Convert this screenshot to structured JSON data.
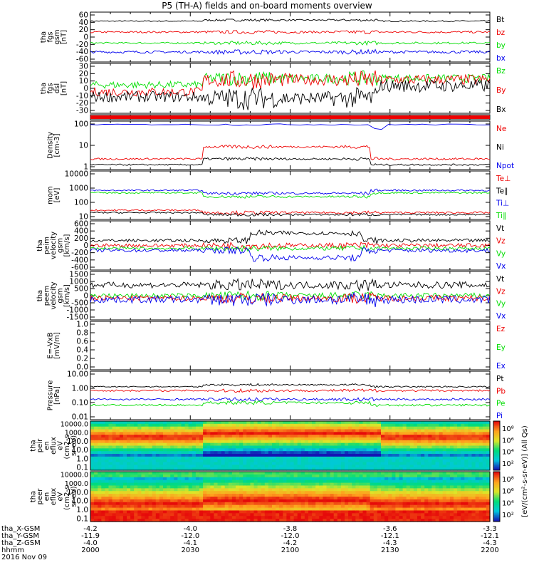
{
  "title": "P5 (TH-A) fields and on-board moments overview",
  "colors": {
    "black": "#000000",
    "red": "#ee0000",
    "green": "#00dd00",
    "blue": "#0000ee"
  },
  "chart_data": {
    "type": "line",
    "panels": [
      {
        "id": "fgs-gsm",
        "ylabel": [
          "tha",
          "fgs",
          "gsm",
          "[nT]"
        ],
        "ticks": [
          "60",
          "40",
          "20",
          "0",
          "-20",
          "-40",
          "-60"
        ],
        "ylim": [
          -60,
          65
        ],
        "series": [
          {
            "name": "Bt",
            "color": "#000000",
            "base": 50,
            "amp": 5
          },
          {
            "name": "bz",
            "color": "#ee0000",
            "base": 15,
            "amp": 5
          },
          {
            "name": "by",
            "color": "#00dd00",
            "base": -17,
            "amp": 6
          },
          {
            "name": "bx",
            "color": "#0000ee",
            "base": -30,
            "amp": 7
          }
        ]
      },
      {
        "id": "fgs-dsl",
        "ylabel": [
          "tha",
          "fgs",
          "dsl",
          "[nT]"
        ],
        "ticks": [
          "30",
          "20",
          "10",
          "0",
          "-10",
          "-20",
          "-30"
        ],
        "ylim": [
          -35,
          30
        ],
        "series": [
          {
            "name": "Bz",
            "color": "#00dd00",
            "base": 5,
            "amp": 8
          },
          {
            "name": "By",
            "color": "#ee0000",
            "base": 2,
            "amp": 10
          },
          {
            "name": "Bx",
            "color": "#000000",
            "base": -10,
            "amp": 12
          }
        ]
      },
      {
        "id": "mode-bar",
        "ylabel": [],
        "ticks": [],
        "series": []
      },
      {
        "id": "density",
        "ylabel": [
          "Density",
          "[cm-3]"
        ],
        "ticks": [
          "100",
          "10",
          "1"
        ],
        "series": [
          {
            "name": "Ne",
            "color": "#ee0000"
          },
          {
            "name": "Ni",
            "color": "#000000"
          },
          {
            "name": "Npot",
            "color": "#0000ee"
          }
        ]
      },
      {
        "id": "temp",
        "ylabel": [
          "mom",
          "[eV]"
        ],
        "ticks": [
          "10000",
          "1000",
          "100",
          "10"
        ],
        "series": [
          {
            "name": "Te⊥",
            "color": "#ee0000"
          },
          {
            "name": "Te∥",
            "color": "#000000"
          },
          {
            "name": "Ti⊥",
            "color": "#0000ee"
          },
          {
            "name": "Ti∥",
            "color": "#00dd00"
          }
        ]
      },
      {
        "id": "peim-vel",
        "ylabel": [
          "tha",
          "peim",
          "velocity",
          "gsm",
          "[km/s]"
        ],
        "ticks": [
          "600",
          "400",
          "200",
          "0",
          "-200",
          "-400",
          "-600"
        ],
        "series": [
          {
            "name": "Vt",
            "color": "#000000"
          },
          {
            "name": "Vz",
            "color": "#ee0000"
          },
          {
            "name": "Vy",
            "color": "#00dd00"
          },
          {
            "name": "Vx",
            "color": "#0000ee"
          }
        ]
      },
      {
        "id": "peem-vel",
        "ylabel": [
          "tha",
          "peem",
          "velocity",
          "gsm",
          "[km/s]"
        ],
        "ticks": [
          "1500",
          "1000",
          "500",
          "0",
          "-500",
          "-1000",
          "-1500"
        ],
        "series": [
          {
            "name": "Vt",
            "color": "#000000"
          },
          {
            "name": "Vz",
            "color": "#ee0000"
          },
          {
            "name": "Vy",
            "color": "#00dd00"
          },
          {
            "name": "Vx",
            "color": "#0000ee"
          }
        ]
      },
      {
        "id": "efield",
        "ylabel": [
          "E=-VxB",
          "[mV/m]"
        ],
        "ticks": [
          "1.0",
          "0.8",
          "0.6",
          "0.4",
          "0.2",
          "0.0"
        ],
        "series": [
          {
            "name": "Ez",
            "color": "#ee0000"
          },
          {
            "name": "Ey",
            "color": "#00dd00"
          },
          {
            "name": "Ex",
            "color": "#0000ee"
          }
        ]
      },
      {
        "id": "pressure",
        "ylabel": [
          "Pressure",
          "[nPa]"
        ],
        "ticks": [
          "10.00",
          "1.00",
          "0.10",
          "0.01"
        ],
        "series": [
          {
            "name": "Pt",
            "color": "#000000"
          },
          {
            "name": "Pb",
            "color": "#ee0000"
          },
          {
            "name": "Pe",
            "color": "#00dd00"
          },
          {
            "name": "Pi",
            "color": "#0000ee"
          }
        ]
      },
      {
        "id": "peir-spec",
        "ylabel": [
          "tha",
          "peir",
          "en",
          "eflux",
          "eV",
          "(cm2-s-",
          "sr-eV)"
        ],
        "ticks": [
          "10000.0",
          "1000.0",
          "100.0",
          "10.0",
          "1.0",
          "0.1"
        ],
        "series": []
      },
      {
        "id": "peer-spec",
        "ylabel": [
          "tha",
          "peer",
          "en",
          "eflux",
          "eV",
          "(cm2-s-",
          "sr-eV)"
        ],
        "ticks": [
          "10000.0",
          "1000.0",
          "100.0",
          "10.0",
          "1.0",
          "0.1"
        ],
        "series": []
      }
    ],
    "colorbar": {
      "upper_ticks": [
        "10⁸",
        "10⁶",
        "10⁴",
        "10²"
      ],
      "lower_ticks": [
        "10⁸",
        "10⁶",
        "10⁴",
        "10²"
      ],
      "label": "[eV/(cm²-s-sr-eV)] (All Qs)"
    },
    "x_axis": {
      "rows": [
        {
          "label": "tha_X-GSM",
          "values": [
            "-4.2",
            "-4.0",
            "-3.8",
            "-3.6",
            "-3.3"
          ]
        },
        {
          "label": "tha_Y-GSM",
          "values": [
            "-11.9",
            "-12.0",
            "-12.0",
            "-12.1",
            "-12.1"
          ]
        },
        {
          "label": "tha_Z-GSM",
          "values": [
            "-4.0",
            "-4.1",
            "-4.2",
            "-4.3",
            "-4.3"
          ]
        },
        {
          "label": "hhmm",
          "values": [
            "2000",
            "2030",
            "2100",
            "2130",
            "2200"
          ]
        }
      ],
      "date": "2016 Nov 09"
    }
  }
}
